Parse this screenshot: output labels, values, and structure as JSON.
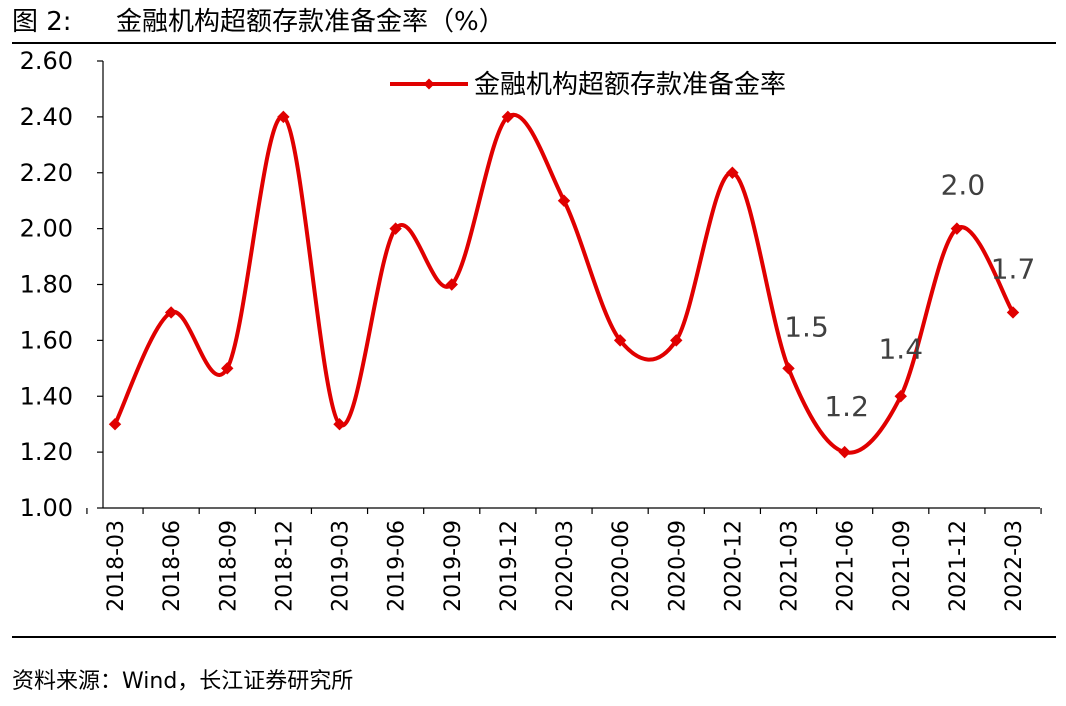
{
  "figure": {
    "number": "图 2:",
    "title": "金融机构超额存款准备金率（%）"
  },
  "source": "资料来源：Wind，长江证券研究所",
  "chart_data": {
    "type": "line",
    "series": [
      {
        "name": "金融机构超额存款准备金率",
        "color": "#e00000",
        "values": [
          1.3,
          1.7,
          1.5,
          2.4,
          1.3,
          2.0,
          1.8,
          2.4,
          2.1,
          1.6,
          1.6,
          2.2,
          1.5,
          1.2,
          1.4,
          2.0,
          1.7
        ]
      }
    ],
    "categories": [
      "2018-03",
      "2018-06",
      "2018-09",
      "2018-12",
      "2019-03",
      "2019-06",
      "2019-09",
      "2019-12",
      "2020-03",
      "2020-06",
      "2020-09",
      "2020-12",
      "2021-03",
      "2021-06",
      "2021-09",
      "2021-12",
      "2022-03"
    ],
    "ylim": [
      1.0,
      2.6
    ],
    "yticks": [
      "1.00",
      "1.20",
      "1.40",
      "1.60",
      "1.80",
      "2.00",
      "2.20",
      "2.40",
      "2.60"
    ],
    "data_labels": [
      {
        "index": 12,
        "text": "1.5"
      },
      {
        "index": 13,
        "text": "1.2"
      },
      {
        "index": 14,
        "text": "1.4"
      },
      {
        "index": 15,
        "text": "2.0"
      },
      {
        "index": 16,
        "text": "1.7"
      }
    ],
    "legend_position": "top-center",
    "grid": false,
    "smooth": true
  }
}
